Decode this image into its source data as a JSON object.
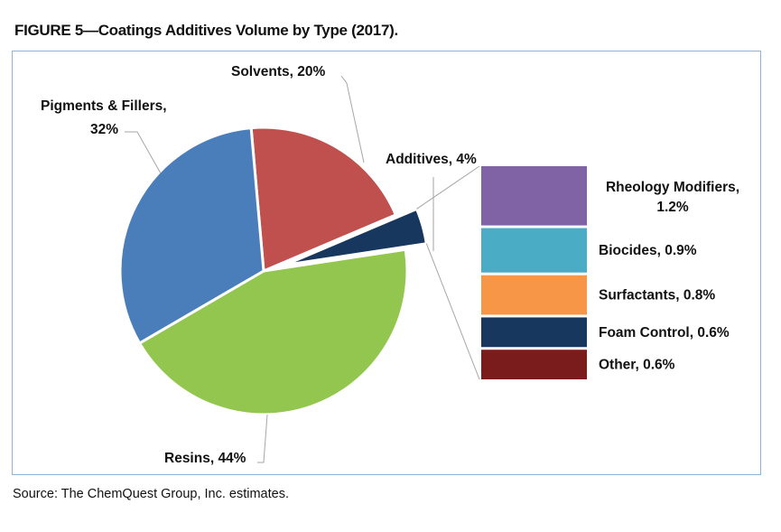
{
  "figure_title": "FIGURE 5—Coatings Additives Volume by Type (2017).",
  "source": "Source: The ChemQuest Group, Inc. estimates.",
  "chart_data": [
    {
      "type": "pie",
      "title": "FIGURE 5—Coatings Additives Volume by Type (2017).",
      "categories": [
        "Solvents",
        "Additives",
        "Resins",
        "Pigments & Fillers"
      ],
      "values": [
        20,
        4,
        44,
        32
      ],
      "labels": [
        "Solvents, 20%",
        "Additives, 4%",
        "Resins, 44%",
        "Pigments & Fillers, 32%"
      ],
      "label_lines": [
        [
          "Solvents, 20%"
        ],
        [
          "Additives, 4%"
        ],
        [
          "Resins, 44%"
        ],
        [
          "Pigments & Fillers,",
          "32%"
        ]
      ],
      "colors": [
        "#c0504d",
        "#17375e",
        "#92c64e",
        "#4a7ebb"
      ],
      "exploded": "Additives"
    },
    {
      "type": "bar",
      "stacked": true,
      "title": "Additives, 4%",
      "categories": [
        "Rheology Modifiers",
        "Biocides",
        "Surfactants",
        "Foam Control",
        "Other"
      ],
      "values": [
        1.2,
        0.9,
        0.8,
        0.6,
        0.6
      ],
      "labels": [
        "Rheology Modifiers, 1.2%",
        "Biocides, 0.9%",
        "Surfactants, 0.8%",
        "Foam Control, 0.6%",
        "Other, 0.6%"
      ],
      "label_lines": [
        [
          "Rheology Modifiers,",
          "1.2%"
        ],
        [
          "Biocides, 0.9%"
        ],
        [
          "Surfactants, 0.8%"
        ],
        [
          "Foam Control, 0.6%"
        ],
        [
          "Other, 0.6%"
        ]
      ],
      "colors": [
        "#8063a5",
        "#4aacc5",
        "#f79646",
        "#17375e",
        "#7b1c1c"
      ]
    }
  ]
}
